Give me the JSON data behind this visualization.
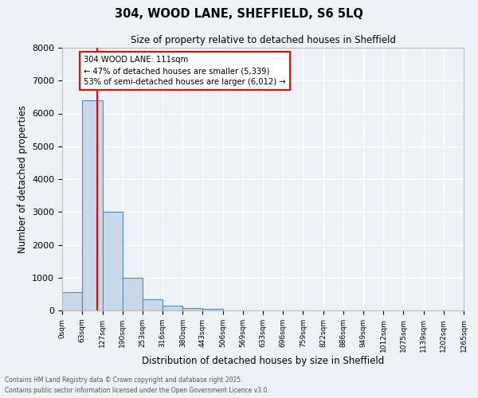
{
  "title": "304, WOOD LANE, SHEFFIELD, S6 5LQ",
  "subtitle": "Size of property relative to detached houses in Sheffield",
  "xlabel": "Distribution of detached houses by size in Sheffield",
  "ylabel": "Number of detached properties",
  "bin_edges": [
    0,
    63,
    127,
    190,
    253,
    316,
    380,
    443,
    506,
    569,
    633,
    696,
    759,
    822,
    886,
    949,
    1012,
    1075,
    1139,
    1202,
    1265
  ],
  "bin_labels": [
    "0sqm",
    "63sqm",
    "127sqm",
    "190sqm",
    "253sqm",
    "316sqm",
    "380sqm",
    "443sqm",
    "506sqm",
    "569sqm",
    "633sqm",
    "696sqm",
    "759sqm",
    "822sqm",
    "886sqm",
    "949sqm",
    "1012sqm",
    "1075sqm",
    "1139sqm",
    "1202sqm",
    "1265sqm"
  ],
  "bar_heights": [
    550,
    6400,
    3000,
    1000,
    350,
    150,
    80,
    50,
    0,
    0,
    0,
    0,
    0,
    0,
    0,
    0,
    0,
    0,
    0,
    0
  ],
  "bar_color": "#c8d8e8",
  "bar_edge_color": "#5588bb",
  "vline_x": 111,
  "vline_color": "red",
  "annotation_text": "304 WOOD LANE: 111sqm\n← 47% of detached houses are smaller (5,339)\n53% of semi-detached houses are larger (6,012) →",
  "annotation_box_color": "white",
  "annotation_box_edge": "red",
  "ylim": [
    0,
    8000
  ],
  "background_color": "#eef2f6",
  "grid_color": "white",
  "footnote1": "Contains HM Land Registry data © Crown copyright and database right 2025.",
  "footnote2": "Contains public sector information licensed under the Open Government Licence v3.0."
}
